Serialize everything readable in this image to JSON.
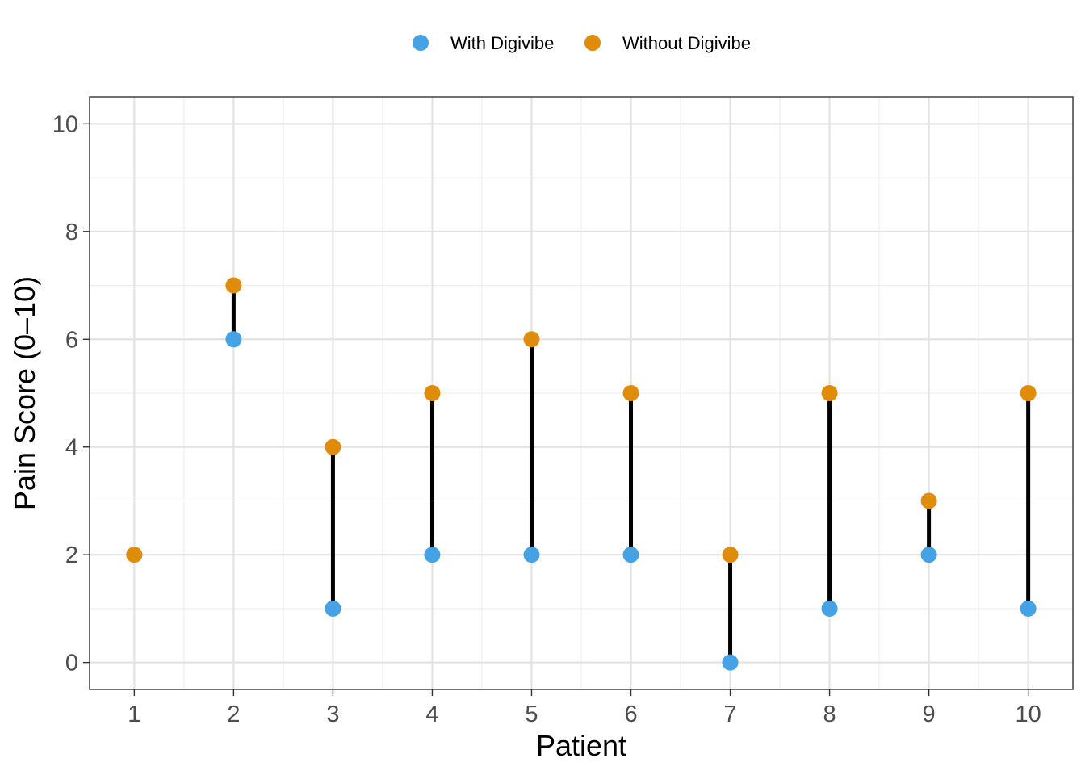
{
  "chart_data": {
    "type": "scatter",
    "title": "",
    "xlabel": "Patient",
    "ylabel": "Pain Score (0–10)",
    "x": [
      1,
      2,
      3,
      4,
      5,
      6,
      7,
      8,
      9,
      10
    ],
    "x_tick_labels": [
      "1",
      "2",
      "3",
      "4",
      "5",
      "6",
      "7",
      "8",
      "9",
      "10"
    ],
    "y_ticks": [
      0,
      2,
      4,
      6,
      8,
      10
    ],
    "y_tick_labels": [
      "0",
      "2",
      "4",
      "6",
      "8",
      "10"
    ],
    "xlim": [
      0.55,
      10.45
    ],
    "ylim": [
      -0.5,
      10.5
    ],
    "grid": true,
    "legend_position": "top",
    "connector_color": "#000000",
    "series": [
      {
        "name": "With Digivibe",
        "color": "#45A3E5",
        "values": [
          2,
          6,
          1,
          2,
          2,
          2,
          0,
          1,
          2,
          1
        ]
      },
      {
        "name": "Without Digivibe",
        "color": "#E08C0B",
        "values": [
          2,
          7,
          4,
          5,
          6,
          5,
          2,
          5,
          3,
          5
        ]
      }
    ]
  }
}
